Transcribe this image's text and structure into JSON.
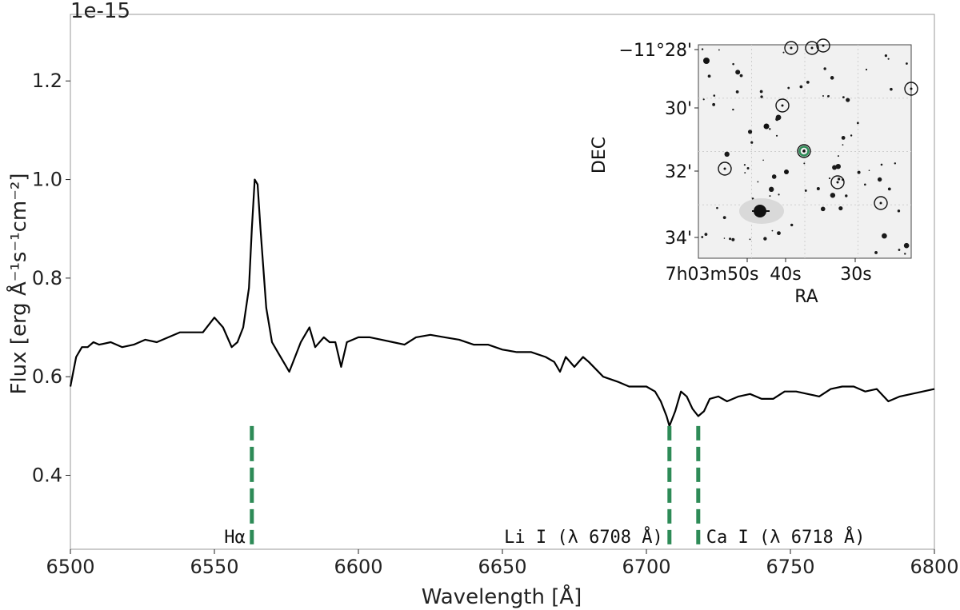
{
  "chart_data": {
    "type": "line",
    "xlabel": "Wavelength [Å]",
    "ylabel": "Flux [erg Å⁻¹s⁻¹cm⁻²]",
    "offset_text": "1e-15",
    "xlim": [
      6500,
      6800
    ],
    "ylim": [
      0.25,
      1.335
    ],
    "xticks": [
      6500,
      6550,
      6600,
      6650,
      6700,
      6750,
      6800
    ],
    "yticks": [
      0.4,
      0.6,
      0.8,
      1.0,
      1.2
    ],
    "xtick_labels": [
      "6500",
      "6550",
      "6600",
      "6650",
      "6700",
      "6750",
      "6800"
    ],
    "ytick_labels": [
      "0.4",
      "0.6",
      "0.8",
      "1.0",
      "1.2"
    ],
    "grid": false,
    "series": [
      {
        "color": "#000000",
        "x": [
          6500,
          6502,
          6504,
          6506,
          6508,
          6510,
          6514,
          6518,
          6522,
          6526,
          6530,
          6534,
          6538,
          6542,
          6546,
          6550,
          6553,
          6556,
          6558,
          6560,
          6562,
          6563,
          6564,
          6565,
          6566,
          6568,
          6570,
          6572,
          6574,
          6576,
          6578,
          6580,
          6583,
          6585,
          6588,
          6590,
          6592,
          6594,
          6596,
          6600,
          6604,
          6608,
          6612,
          6616,
          6620,
          6625,
          6630,
          6635,
          6640,
          6645,
          6650,
          6655,
          6660,
          6665,
          6668,
          6670,
          6672,
          6675,
          6678,
          6680,
          6685,
          6690,
          6694,
          6697,
          6700,
          6703,
          6705,
          6707,
          6708,
          6710,
          6712,
          6714,
          6716,
          6718,
          6720,
          6722,
          6725,
          6728,
          6732,
          6736,
          6740,
          6744,
          6748,
          6752,
          6756,
          6760,
          6764,
          6768,
          6772,
          6776,
          6780,
          6784,
          6788,
          6792,
          6796,
          6800
        ],
        "y": [
          0.58,
          0.64,
          0.66,
          0.66,
          0.67,
          0.665,
          0.67,
          0.66,
          0.665,
          0.675,
          0.67,
          0.68,
          0.69,
          0.69,
          0.69,
          0.72,
          0.7,
          0.66,
          0.67,
          0.7,
          0.78,
          0.9,
          1.0,
          0.99,
          0.9,
          0.74,
          0.67,
          0.65,
          0.63,
          0.61,
          0.64,
          0.67,
          0.7,
          0.66,
          0.68,
          0.67,
          0.67,
          0.62,
          0.67,
          0.68,
          0.68,
          0.675,
          0.67,
          0.665,
          0.68,
          0.685,
          0.68,
          0.675,
          0.665,
          0.665,
          0.655,
          0.65,
          0.65,
          0.64,
          0.63,
          0.61,
          0.64,
          0.62,
          0.64,
          0.63,
          0.6,
          0.59,
          0.58,
          0.58,
          0.58,
          0.57,
          0.55,
          0.52,
          0.5,
          0.53,
          0.57,
          0.56,
          0.535,
          0.52,
          0.53,
          0.555,
          0.56,
          0.55,
          0.56,
          0.565,
          0.555,
          0.555,
          0.57,
          0.57,
          0.565,
          0.56,
          0.575,
          0.58,
          0.58,
          0.57,
          0.575,
          0.55,
          0.56,
          0.565,
          0.57,
          0.575
        ]
      }
    ],
    "annotations": [
      {
        "label": "Hα",
        "x": 6563,
        "color": "#2e8b57"
      },
      {
        "label": "Li I (λ 6708 Å)",
        "x": 6708,
        "color": "#2e8b57"
      },
      {
        "label": "Ca I (λ 6718 Å)",
        "x": 6718,
        "color": "#2e8b57"
      }
    ],
    "marker_ylim": [
      0.25,
      0.5
    ],
    "inset": {
      "type": "sky-image",
      "xlabel": "RA",
      "ylabel": "DEC",
      "xtick_labels": [
        "7h03m50s",
        "40s",
        "30s"
      ],
      "ytick_labels": [
        "−11°28'",
        "30'",
        "32'",
        "34'"
      ],
      "target_color": "#2e8b57"
    }
  }
}
